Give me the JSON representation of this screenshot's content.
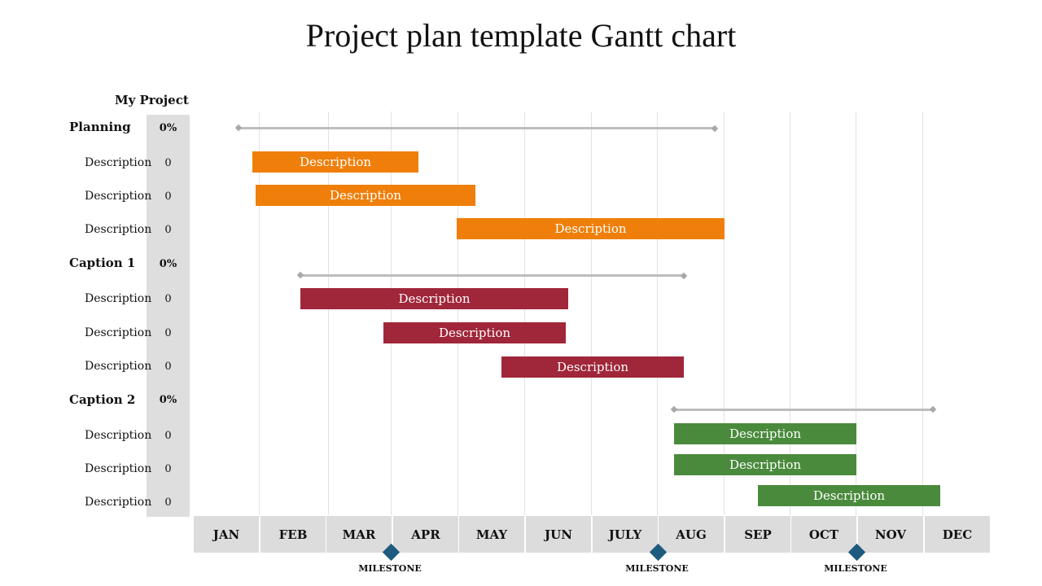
{
  "title": "Project plan template Gantt chart",
  "project_label": "My Project",
  "groups": [
    {
      "label": "Planning",
      "pct": "0%",
      "color": "#ef7f0a",
      "tasks": [
        {
          "label": "Description",
          "value": "0",
          "bar_text": "Description"
        },
        {
          "label": "Description",
          "value": "0",
          "bar_text": "Description"
        },
        {
          "label": "Description",
          "value": "0",
          "bar_text": "Description"
        }
      ]
    },
    {
      "label": "Caption 1",
      "pct": "0%",
      "color": "#a0263a",
      "tasks": [
        {
          "label": "Description",
          "value": "0",
          "bar_text": "Description"
        },
        {
          "label": "Description",
          "value": "0",
          "bar_text": "Description"
        },
        {
          "label": "Description",
          "value": "0",
          "bar_text": "Description"
        }
      ]
    },
    {
      "label": "Caption 2",
      "pct": "0%",
      "color": "#4a8a3c",
      "tasks": [
        {
          "label": "Description",
          "value": "0",
          "bar_text": "Description"
        },
        {
          "label": "Description",
          "value": "0",
          "bar_text": "Description"
        },
        {
          "label": "Description",
          "value": "0",
          "bar_text": "Description"
        }
      ]
    }
  ],
  "months": [
    "JAN",
    "FEB",
    "MAR",
    "APR",
    "MAY",
    "JUN",
    "JULY",
    "AUG",
    "SEP",
    "OCT",
    "NOV",
    "DEC"
  ],
  "milestones": [
    {
      "label": "MILESTONE"
    },
    {
      "label": "MILESTONE"
    },
    {
      "label": "MILESTONE"
    }
  ]
}
